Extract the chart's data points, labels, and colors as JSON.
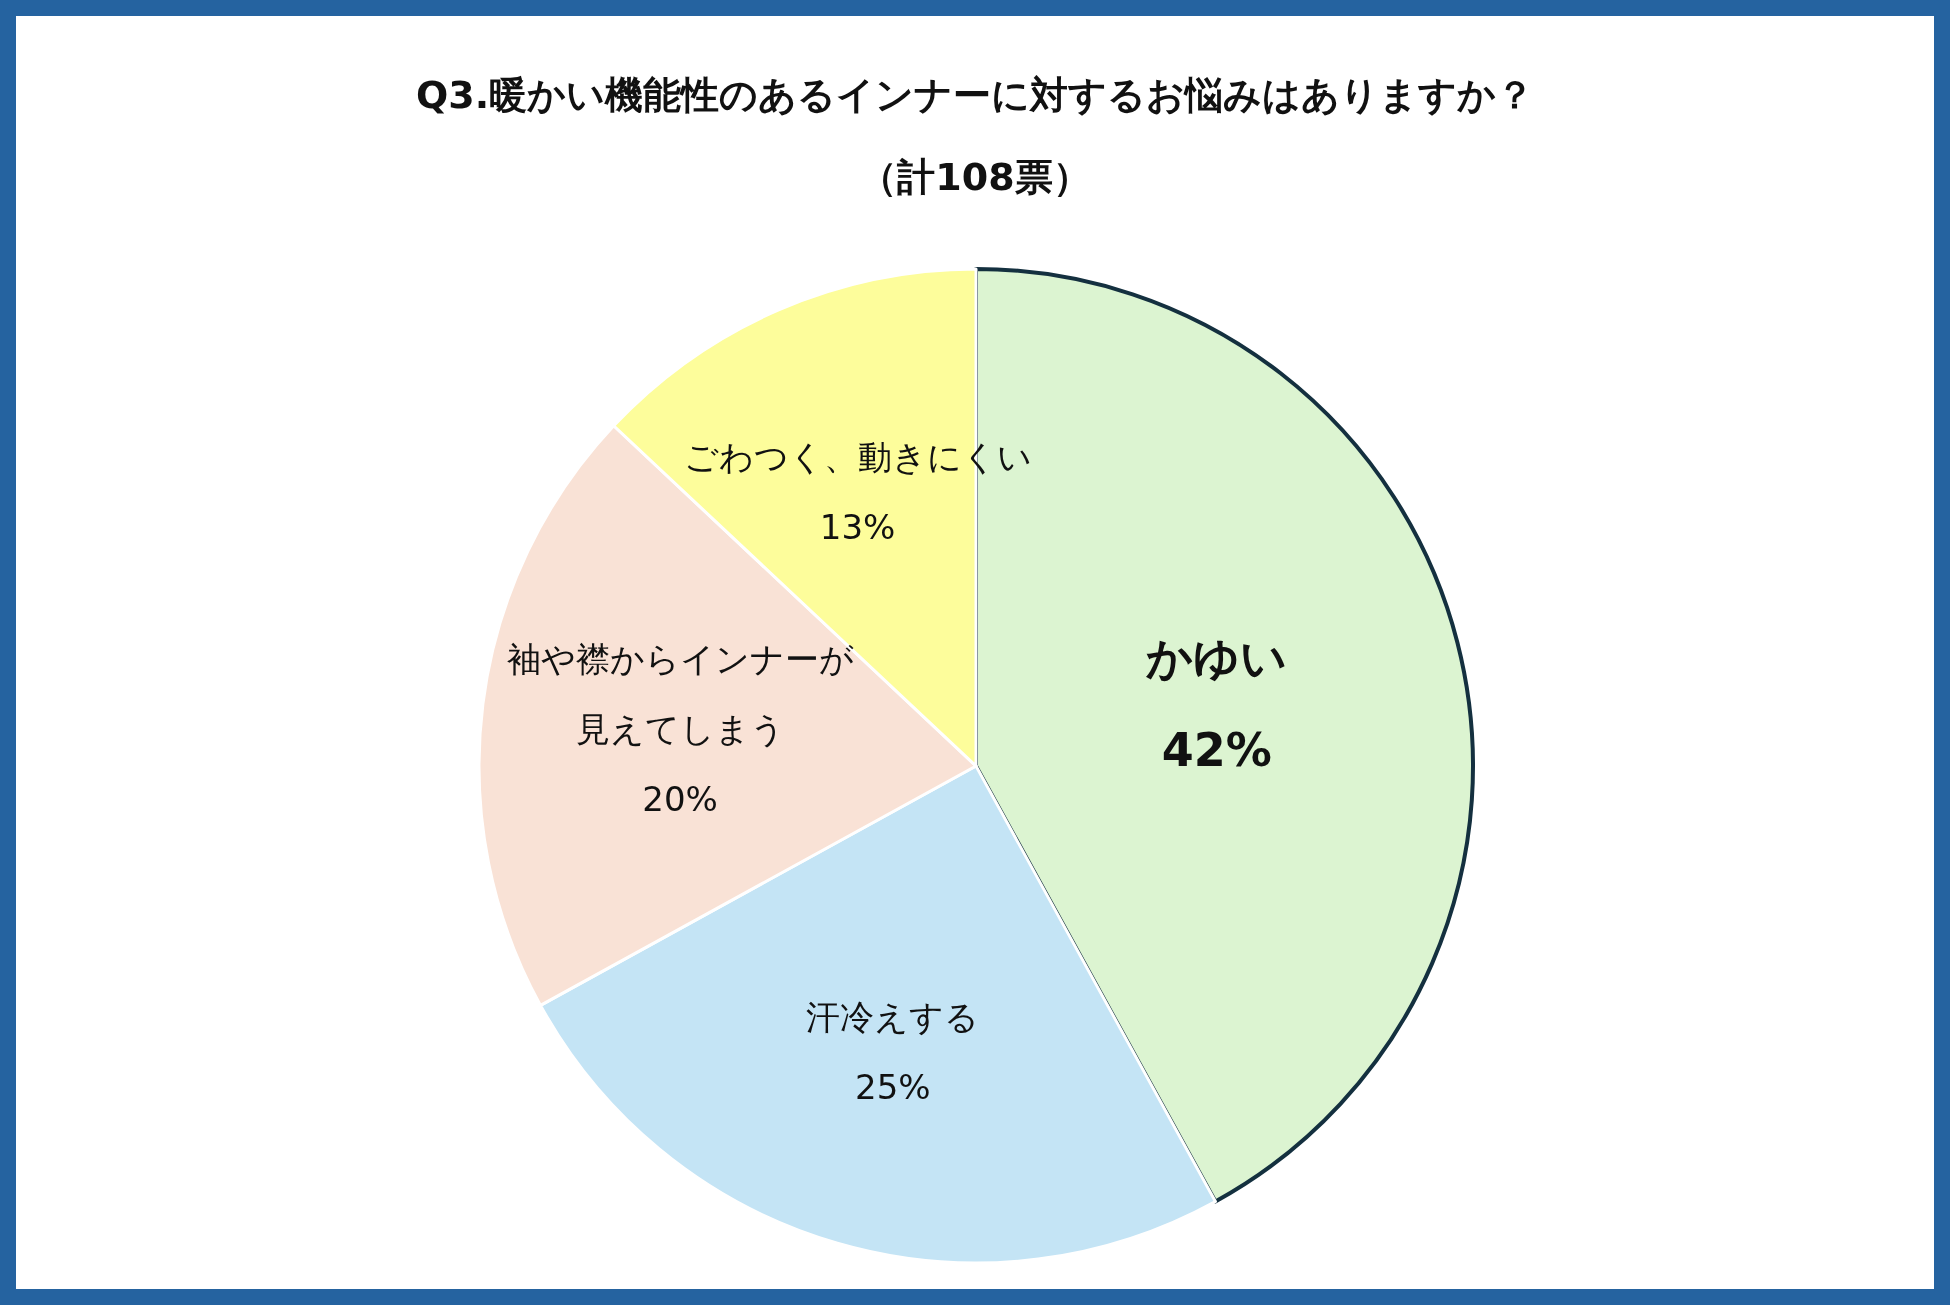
{
  "chart_data": {
    "type": "pie",
    "title": "Q3.暖かい機能性のあるインナーに対するお悩みはありますか？",
    "subtitle": "（計108票）",
    "categories": [
      "かゆい",
      "汗冷えする",
      "袖や襟からインナーが見えてしまう",
      "ごわつく、動きにくい"
    ],
    "values": [
      42,
      25,
      20,
      13
    ],
    "value_labels": [
      "42%",
      "25%",
      "20%",
      "13%"
    ],
    "colors": [
      "#dcf4d1",
      "#c4e4f5",
      "#f9e2d6",
      "#fdfd9b"
    ]
  }
}
